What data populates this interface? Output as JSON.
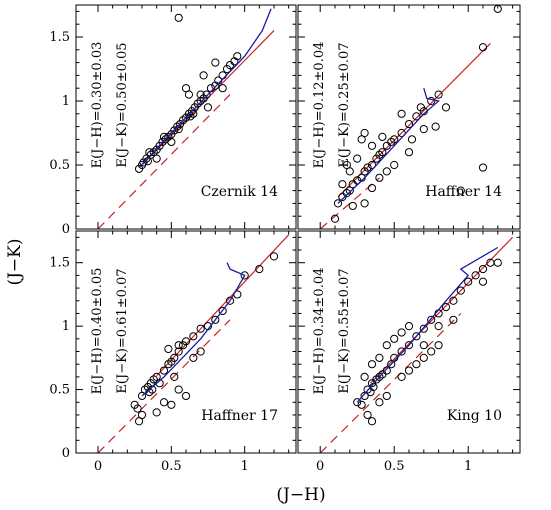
{
  "figure": {
    "xlabel": "(J−H)",
    "ylabel": "(J−K)"
  },
  "colors": {
    "points": "#000000",
    "reference_line": "#cc2222",
    "fit_line": "#cc2222",
    "isochrone": "#1a1aa6"
  },
  "chart_data": [
    {
      "type": "scatter",
      "cluster": "Czernik 14",
      "annotations": [
        "E(J−H)=0.30±0.03",
        "E(J−K)=0.50±0.05"
      ],
      "xlim": [
        -0.15,
        1.35
      ],
      "ylim": [
        0,
        1.75
      ],
      "xticks": [
        "0",
        "0.5",
        "1"
      ],
      "yticks": [
        "0",
        "0.5",
        "1",
        "1.5"
      ],
      "reference_line": {
        "style": "dashed",
        "points": [
          [
            0.0,
            0.0
          ],
          [
            0.9,
            1.05
          ]
        ]
      },
      "reddened_line": {
        "style": "solid",
        "points": [
          [
            0.3,
            0.5
          ],
          [
            1.2,
            1.55
          ]
        ]
      },
      "isochrone": {
        "points": [
          [
            0.28,
            0.48
          ],
          [
            0.5,
            0.75
          ],
          [
            0.75,
            1.05
          ],
          [
            1.0,
            1.35
          ],
          [
            1.12,
            1.55
          ],
          [
            1.18,
            1.72
          ]
        ]
      },
      "points": [
        [
          0.28,
          0.47
        ],
        [
          0.3,
          0.5
        ],
        [
          0.31,
          0.52
        ],
        [
          0.33,
          0.55
        ],
        [
          0.34,
          0.53
        ],
        [
          0.36,
          0.58
        ],
        [
          0.38,
          0.6
        ],
        [
          0.4,
          0.62
        ],
        [
          0.42,
          0.65
        ],
        [
          0.44,
          0.68
        ],
        [
          0.46,
          0.7
        ],
        [
          0.48,
          0.72
        ],
        [
          0.5,
          0.74
        ],
        [
          0.52,
          0.77
        ],
        [
          0.54,
          0.8
        ],
        [
          0.56,
          0.82
        ],
        [
          0.58,
          0.85
        ],
        [
          0.6,
          0.87
        ],
        [
          0.62,
          0.9
        ],
        [
          0.64,
          0.92
        ],
        [
          0.66,
          0.95
        ],
        [
          0.68,
          0.98
        ],
        [
          0.7,
          1.0
        ],
        [
          0.72,
          1.02
        ],
        [
          0.74,
          1.05
        ],
        [
          0.77,
          1.1
        ],
        [
          0.8,
          1.12
        ],
        [
          0.82,
          1.16
        ],
        [
          0.85,
          1.2
        ],
        [
          0.88,
          1.25
        ],
        [
          0.9,
          1.28
        ],
        [
          0.93,
          1.31
        ],
        [
          0.95,
          1.35
        ],
        [
          0.35,
          0.6
        ],
        [
          0.45,
          0.72
        ],
        [
          0.55,
          0.78
        ],
        [
          0.63,
          0.88
        ],
        [
          0.6,
          1.1
        ],
        [
          0.62,
          1.05
        ],
        [
          0.72,
          1.2
        ],
        [
          0.8,
          1.3
        ],
        [
          0.75,
          0.95
        ],
        [
          0.55,
          1.65
        ],
        [
          0.4,
          0.55
        ],
        [
          0.5,
          0.68
        ],
        [
          0.65,
          0.9
        ],
        [
          0.85,
          1.1
        ],
        [
          0.7,
          1.05
        ]
      ]
    },
    {
      "type": "scatter",
      "cluster": "Haffner 14",
      "annotations": [
        "E(J−H)=0.12±0.04",
        "E(J−K)=0.25±0.07"
      ],
      "xlim": [
        -0.15,
        1.35
      ],
      "ylim": [
        0,
        1.75
      ],
      "xticks": [
        "0",
        "0.5",
        "1"
      ],
      "yticks": [
        "0",
        "0.5",
        "1",
        "1.5"
      ],
      "reference_line": {
        "style": "dashed",
        "points": [
          [
            0.0,
            0.0
          ],
          [
            0.4,
            0.4
          ]
        ]
      },
      "reddened_line": {
        "style": "solid",
        "points": [
          [
            0.12,
            0.25
          ],
          [
            1.15,
            1.45
          ]
        ]
      },
      "isochrone": {
        "points": [
          [
            0.12,
            0.2
          ],
          [
            0.3,
            0.4
          ],
          [
            0.5,
            0.65
          ],
          [
            0.7,
            0.9
          ],
          [
            0.8,
            1.0
          ],
          [
            0.72,
            1.02
          ],
          [
            0.7,
            1.1
          ]
        ]
      },
      "points": [
        [
          0.12,
          0.2
        ],
        [
          0.15,
          0.25
        ],
        [
          0.18,
          0.28
        ],
        [
          0.2,
          0.3
        ],
        [
          0.22,
          0.35
        ],
        [
          0.25,
          0.38
        ],
        [
          0.28,
          0.4
        ],
        [
          0.3,
          0.45
        ],
        [
          0.32,
          0.48
        ],
        [
          0.35,
          0.5
        ],
        [
          0.38,
          0.55
        ],
        [
          0.4,
          0.58
        ],
        [
          0.42,
          0.6
        ],
        [
          0.45,
          0.65
        ],
        [
          0.48,
          0.68
        ],
        [
          0.5,
          0.7
        ],
        [
          0.55,
          0.75
        ],
        [
          0.6,
          0.82
        ],
        [
          0.65,
          0.88
        ],
        [
          0.7,
          0.92
        ],
        [
          0.75,
          1.0
        ],
        [
          0.8,
          1.05
        ],
        [
          0.15,
          0.35
        ],
        [
          0.2,
          0.45
        ],
        [
          0.25,
          0.55
        ],
        [
          0.28,
          0.7
        ],
        [
          0.3,
          0.75
        ],
        [
          0.22,
          0.18
        ],
        [
          0.3,
          0.2
        ],
        [
          0.35,
          0.32
        ],
        [
          0.4,
          0.4
        ],
        [
          0.45,
          0.45
        ],
        [
          0.5,
          0.5
        ],
        [
          0.6,
          0.6
        ],
        [
          0.55,
          0.9
        ],
        [
          0.68,
          0.95
        ],
        [
          0.78,
          0.8
        ],
        [
          0.85,
          0.95
        ],
        [
          1.1,
          1.42
        ],
        [
          1.2,
          1.72
        ],
        [
          1.1,
          0.48
        ],
        [
          0.95,
          0.3
        ],
        [
          0.1,
          0.08
        ],
        [
          0.18,
          0.5
        ],
        [
          0.35,
          0.65
        ],
        [
          0.42,
          0.72
        ],
        [
          0.62,
          0.7
        ],
        [
          0.7,
          0.78
        ]
      ]
    },
    {
      "type": "scatter",
      "cluster": "Haffner 17",
      "annotations": [
        "E(J−H)=0.40±0.05",
        "E(J−K)=0.61±0.07"
      ],
      "xlim": [
        -0.15,
        1.35
      ],
      "ylim": [
        0,
        1.75
      ],
      "xticks": [
        "0",
        "0.5",
        "1"
      ],
      "yticks": [
        "0",
        "0.5",
        "1",
        "1.5"
      ],
      "reference_line": {
        "style": "dashed",
        "points": [
          [
            0.0,
            0.0
          ],
          [
            0.9,
            1.05
          ]
        ]
      },
      "reddened_line": {
        "style": "solid",
        "points": [
          [
            0.4,
            0.61
          ],
          [
            1.3,
            1.72
          ]
        ]
      },
      "isochrone": {
        "points": [
          [
            0.3,
            0.45
          ],
          [
            0.45,
            0.6
          ],
          [
            0.7,
            0.9
          ],
          [
            0.9,
            1.2
          ],
          [
            1.0,
            1.4
          ],
          [
            0.9,
            1.45
          ],
          [
            0.88,
            1.5
          ]
        ]
      },
      "points": [
        [
          0.25,
          0.38
        ],
        [
          0.27,
          0.35
        ],
        [
          0.3,
          0.45
        ],
        [
          0.32,
          0.5
        ],
        [
          0.34,
          0.52
        ],
        [
          0.35,
          0.48
        ],
        [
          0.36,
          0.55
        ],
        [
          0.37,
          0.5
        ],
        [
          0.38,
          0.58
        ],
        [
          0.4,
          0.6
        ],
        [
          0.42,
          0.55
        ],
        [
          0.45,
          0.65
        ],
        [
          0.48,
          0.7
        ],
        [
          0.5,
          0.72
        ],
        [
          0.52,
          0.75
        ],
        [
          0.55,
          0.8
        ],
        [
          0.58,
          0.85
        ],
        [
          0.6,
          0.88
        ],
        [
          0.65,
          0.92
        ],
        [
          0.7,
          0.98
        ],
        [
          0.75,
          1.0
        ],
        [
          0.8,
          1.05
        ],
        [
          0.85,
          1.12
        ],
        [
          0.9,
          1.2
        ],
        [
          0.95,
          1.25
        ],
        [
          1.0,
          1.4
        ],
        [
          1.1,
          1.45
        ],
        [
          1.2,
          1.55
        ],
        [
          0.3,
          0.3
        ],
        [
          0.28,
          0.25
        ],
        [
          0.4,
          0.32
        ],
        [
          0.45,
          0.4
        ],
        [
          0.5,
          0.38
        ],
        [
          0.55,
          0.5
        ],
        [
          0.6,
          0.45
        ],
        [
          0.52,
          0.6
        ],
        [
          0.48,
          0.82
        ],
        [
          0.55,
          0.85
        ],
        [
          0.65,
          0.75
        ],
        [
          0.7,
          0.8
        ]
      ]
    },
    {
      "type": "scatter",
      "cluster": "King 10",
      "annotations": [
        "E(J−H)=0.34±0.04",
        "E(J−K)=0.55±0.07"
      ],
      "xlim": [
        -0.15,
        1.35
      ],
      "ylim": [
        0,
        1.75
      ],
      "xticks": [
        "0",
        "0.5",
        "1"
      ],
      "yticks": [
        "0",
        "0.5",
        "1",
        "1.5"
      ],
      "reference_line": {
        "style": "dashed",
        "points": [
          [
            0.0,
            0.0
          ],
          [
            0.95,
            1.1
          ]
        ]
      },
      "reddened_line": {
        "style": "solid",
        "points": [
          [
            0.34,
            0.55
          ],
          [
            1.3,
            1.7
          ]
        ]
      },
      "isochrone": {
        "points": [
          [
            0.25,
            0.4
          ],
          [
            0.4,
            0.6
          ],
          [
            0.6,
            0.85
          ],
          [
            0.85,
            1.2
          ],
          [
            1.0,
            1.4
          ],
          [
            0.95,
            1.45
          ],
          [
            1.2,
            1.62
          ]
        ]
      },
      "points": [
        [
          0.25,
          0.4
        ],
        [
          0.28,
          0.38
        ],
        [
          0.3,
          0.45
        ],
        [
          0.32,
          0.5
        ],
        [
          0.34,
          0.48
        ],
        [
          0.35,
          0.55
        ],
        [
          0.36,
          0.52
        ],
        [
          0.38,
          0.58
        ],
        [
          0.4,
          0.6
        ],
        [
          0.42,
          0.62
        ],
        [
          0.45,
          0.65
        ],
        [
          0.48,
          0.7
        ],
        [
          0.5,
          0.75
        ],
        [
          0.55,
          0.8
        ],
        [
          0.6,
          0.85
        ],
        [
          0.65,
          0.92
        ],
        [
          0.7,
          0.98
        ],
        [
          0.75,
          1.05
        ],
        [
          0.8,
          1.1
        ],
        [
          0.85,
          1.15
        ],
        [
          0.9,
          1.2
        ],
        [
          0.95,
          1.28
        ],
        [
          1.0,
          1.35
        ],
        [
          1.05,
          1.4
        ],
        [
          1.1,
          1.45
        ],
        [
          1.15,
          1.5
        ],
        [
          0.3,
          0.6
        ],
        [
          0.35,
          0.7
        ],
        [
          0.4,
          0.75
        ],
        [
          0.45,
          0.85
        ],
        [
          0.5,
          0.9
        ],
        [
          0.55,
          0.6
        ],
        [
          0.6,
          0.65
        ],
        [
          0.65,
          0.7
        ],
        [
          0.7,
          0.75
        ],
        [
          0.75,
          0.8
        ],
        [
          0.8,
          0.85
        ],
        [
          0.32,
          0.3
        ],
        [
          0.35,
          0.25
        ],
        [
          0.4,
          0.4
        ],
        [
          0.45,
          0.45
        ],
        [
          0.55,
          0.95
        ],
        [
          0.6,
          1.0
        ],
        [
          0.7,
          0.85
        ],
        [
          0.8,
          1.0
        ],
        [
          0.9,
          1.05
        ],
        [
          1.1,
          1.35
        ],
        [
          1.2,
          1.5
        ]
      ]
    }
  ]
}
